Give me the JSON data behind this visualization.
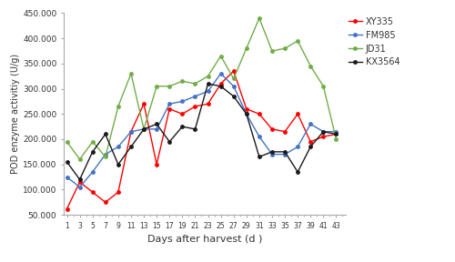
{
  "days": [
    1,
    3,
    5,
    7,
    9,
    11,
    13,
    15,
    17,
    19,
    21,
    23,
    25,
    27,
    29,
    31,
    33,
    35,
    37,
    39,
    41,
    43
  ],
  "XY335": [
    62000,
    115000,
    95000,
    75000,
    95000,
    215000,
    270000,
    150000,
    260000,
    250000,
    265000,
    270000,
    310000,
    335000,
    260000,
    250000,
    220000,
    215000,
    250000,
    195000,
    205000,
    210000
  ],
  "FM985": [
    125000,
    105000,
    135000,
    170000,
    185000,
    215000,
    220000,
    220000,
    270000,
    275000,
    285000,
    295000,
    330000,
    305000,
    250000,
    205000,
    170000,
    170000,
    185000,
    230000,
    215000,
    215000
  ],
  "JD31": [
    195000,
    160000,
    195000,
    165000,
    265000,
    330000,
    220000,
    305000,
    305000,
    315000,
    310000,
    325000,
    365000,
    320000,
    380000,
    440000,
    375000,
    380000,
    395000,
    345000,
    305000,
    200000
  ],
  "KX3564": [
    155000,
    120000,
    175000,
    210000,
    150000,
    185000,
    220000,
    230000,
    195000,
    225000,
    220000,
    310000,
    305000,
    285000,
    250000,
    165000,
    175000,
    175000,
    135000,
    185000,
    215000,
    210000
  ],
  "series_order": [
    "XY335",
    "FM985",
    "JD31",
    "KX3564"
  ],
  "colors": {
    "XY335": "#FF0000",
    "FM985": "#4472C4",
    "JD31": "#70AD47",
    "KX3564": "#1A1A1A"
  },
  "ylim": [
    50000,
    450000
  ],
  "yticks": [
    50000,
    100000,
    150000,
    200000,
    250000,
    300000,
    350000,
    400000,
    450000
  ],
  "xlabel": "Days after harvest (d )",
  "ylabel": "POD enzyme activitiy (U/g)",
  "bg_color": "#FFFFFF",
  "tick_color": "#AAAAAA",
  "spine_color": "#AAAAAA"
}
